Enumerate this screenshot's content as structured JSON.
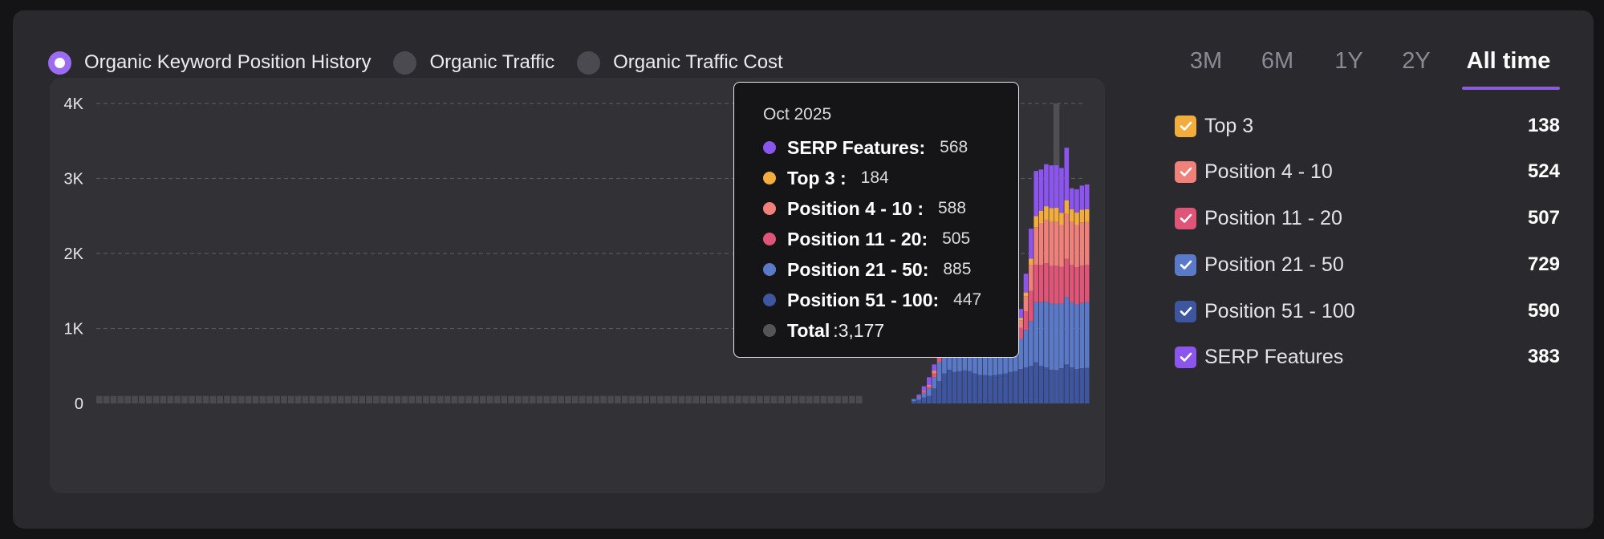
{
  "metric_tabs": [
    {
      "label": "Organic Keyword Position History",
      "active": true
    },
    {
      "label": "Organic Traffic",
      "active": false
    },
    {
      "label": "Organic Traffic Cost",
      "active": false
    }
  ],
  "range_tabs": [
    {
      "label": "3M",
      "active": false
    },
    {
      "label": "6M",
      "active": false
    },
    {
      "label": "1Y",
      "active": false
    },
    {
      "label": "2Y",
      "active": false
    },
    {
      "label": "All time",
      "active": true
    }
  ],
  "legend": [
    {
      "label": "Top 3",
      "value": "138",
      "color": "#f2ad3d"
    },
    {
      "label": "Position 4  -  10",
      "value": "524",
      "color": "#f0807a"
    },
    {
      "label": "Position 11  -  20",
      "value": "507",
      "color": "#e05577"
    },
    {
      "label": "Position 21  -  50",
      "value": "729",
      "color": "#5b79c9"
    },
    {
      "label": "Position 51  -  100",
      "value": "590",
      "color": "#3e55a0"
    },
    {
      "label": "SERP Features",
      "value": "383",
      "color": "#8b55ee"
    }
  ],
  "tooltip": {
    "date": "Oct 2025",
    "rows": [
      {
        "name": "SERP Features:",
        "value": "568",
        "color": "#8b55ee"
      },
      {
        "name": "Top 3 :",
        "value": "184",
        "color": "#f2ad3d"
      },
      {
        "name": "Position 4 - 10 :",
        "value": "588",
        "color": "#f0807a"
      },
      {
        "name": "Position 11 - 20:",
        "value": "505",
        "color": "#e05577"
      },
      {
        "name": "Position 21 - 50:",
        "value": "885",
        "color": "#5b79c9"
      },
      {
        "name": "Position 51 - 100:",
        "value": "447",
        "color": "#3e55a0"
      }
    ],
    "total_label": "Total",
    "total_value": ":3,177",
    "total_color": "#555558"
  },
  "chart_data": {
    "type": "bar",
    "stacked": true,
    "y_ticks": [
      "0",
      "1K",
      "2K",
      "3K",
      "4K"
    ],
    "ylim": [
      0,
      4000
    ],
    "grid": true,
    "highlighted_period": "Oct 2025",
    "series_order": [
      "Position 51 - 100",
      "Position 21 - 50",
      "Position 11 - 20",
      "Position 4 - 10",
      "Top 3",
      "SERP Features"
    ],
    "colors": [
      "#3e55a0",
      "#5b79c9",
      "#e05577",
      "#f0807a",
      "#f2ad3d",
      "#8b55ee"
    ],
    "baseline_bars": 108,
    "baseline_value": 100,
    "recent_bars": [
      [
        30,
        30,
        0,
        0,
        0,
        0
      ],
      [
        50,
        40,
        10,
        0,
        0,
        20
      ],
      [
        80,
        60,
        20,
        10,
        0,
        60
      ],
      [
        100,
        100,
        30,
        20,
        0,
        100
      ],
      [
        200,
        150,
        50,
        40,
        0,
        80
      ],
      [
        300,
        250,
        80,
        80,
        20,
        30
      ],
      [
        400,
        300,
        100,
        80,
        20,
        0
      ],
      [
        450,
        350,
        100,
        60,
        10,
        0
      ],
      [
        420,
        330,
        80,
        50,
        10,
        0
      ],
      [
        430,
        340,
        90,
        50,
        10,
        0
      ],
      [
        440,
        350,
        90,
        60,
        10,
        0
      ],
      [
        430,
        340,
        80,
        50,
        10,
        0
      ],
      [
        400,
        320,
        80,
        50,
        10,
        0
      ],
      [
        380,
        300,
        70,
        50,
        10,
        0
      ],
      [
        380,
        300,
        70,
        40,
        10,
        0
      ],
      [
        370,
        300,
        70,
        40,
        10,
        0
      ],
      [
        380,
        310,
        70,
        40,
        10,
        0
      ],
      [
        390,
        320,
        80,
        50,
        10,
        0
      ],
      [
        400,
        330,
        80,
        50,
        10,
        0
      ],
      [
        420,
        350,
        90,
        60,
        10,
        0
      ],
      [
        430,
        360,
        90,
        60,
        20,
        50
      ],
      [
        460,
        400,
        150,
        100,
        30,
        120
      ],
      [
        480,
        500,
        250,
        200,
        50,
        250
      ],
      [
        500,
        600,
        400,
        350,
        80,
        400
      ],
      [
        550,
        800,
        500,
        500,
        150,
        600
      ],
      [
        500,
        850,
        500,
        550,
        170,
        550
      ],
      [
        480,
        880,
        510,
        580,
        180,
        560
      ],
      [
        450,
        880,
        505,
        585,
        185,
        570
      ],
      [
        447,
        885,
        505,
        588,
        184,
        568
      ],
      [
        470,
        860,
        490,
        560,
        160,
        600
      ],
      [
        520,
        900,
        510,
        600,
        180,
        700
      ],
      [
        480,
        870,
        500,
        570,
        170,
        280
      ],
      [
        460,
        860,
        495,
        565,
        165,
        310
      ],
      [
        470,
        870,
        500,
        575,
        170,
        320
      ],
      [
        475,
        875,
        500,
        570,
        170,
        330
      ]
    ]
  }
}
